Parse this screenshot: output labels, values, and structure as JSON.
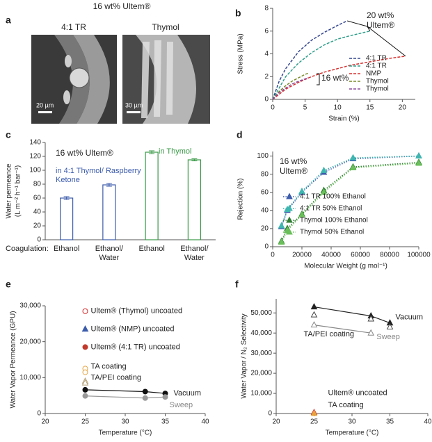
{
  "figure_title": "16 wt% Ultem®",
  "panel_a": {
    "label": "a",
    "images": [
      {
        "title": "4:1 TR",
        "scale_bar": "20 µm"
      },
      {
        "title": "Thymol",
        "scale_bar": "30 µm"
      }
    ]
  },
  "chart_data": [
    {
      "panel": "b",
      "type": "line",
      "line_style": "dashed",
      "xlabel": "Strain (%)",
      "ylabel": "Stress (MPa)",
      "xlim": [
        0,
        22
      ],
      "xticks": [
        0,
        5,
        10,
        15,
        20
      ],
      "ylim": [
        0,
        8
      ],
      "yticks": [
        0,
        2,
        4,
        6,
        8
      ],
      "legend": "lower right",
      "annotations": [
        "20 wt% Ultem®",
        "16 wt%"
      ],
      "series": [
        {
          "name": "4:1 TR",
          "color": "#34468f",
          "x": [
            0,
            1,
            2,
            4,
            6,
            8,
            10,
            11.5
          ],
          "values": [
            0,
            1.6,
            2.7,
            4.2,
            5.2,
            5.9,
            6.5,
            6.9
          ]
        },
        {
          "name": "4:1 TR",
          "color": "#2f9e8a",
          "x": [
            0,
            2,
            4,
            6,
            8,
            10,
            12,
            15
          ],
          "values": [
            0,
            2.0,
            3.2,
            4.1,
            4.8,
            5.3,
            5.6,
            6.0
          ]
        },
        {
          "name": "NMP",
          "color": "#d6312f",
          "x": [
            0,
            2,
            4,
            6,
            8,
            10,
            12,
            14,
            16,
            18,
            20.5
          ],
          "values": [
            0,
            0.9,
            1.5,
            2.0,
            2.4,
            2.7,
            3.0,
            3.2,
            3.4,
            3.6,
            3.8
          ]
        },
        {
          "name": "Thymol",
          "color": "#7a8b2b",
          "x": [
            0,
            1,
            2,
            3,
            4,
            5,
            5.5
          ],
          "values": [
            0,
            0.7,
            1.2,
            1.6,
            1.9,
            2.2,
            2.3
          ]
        },
        {
          "name": "Thymol",
          "color": "#8b4a9e",
          "x": [
            0,
            1,
            2,
            3,
            4,
            5.5
          ],
          "values": [
            0,
            0.6,
            1.0,
            1.35,
            1.6,
            1.9
          ]
        }
      ]
    },
    {
      "panel": "c",
      "type": "bar",
      "xlabel": "Coagulation:",
      "ylabel": [
        "Water permeance",
        "(L m⁻² h⁻¹ bar⁻¹)"
      ],
      "categories": [
        "Ethanol",
        "Ethanol/ Water",
        "Ethanol",
        "Ethanol/ Water"
      ],
      "values": [
        60,
        79,
        126,
        115
      ],
      "errors": [
        2,
        2,
        2,
        1.5
      ],
      "colors": [
        "#3b5bab",
        "#3b5bab",
        "#3a9a48",
        "#3a9a48"
      ],
      "ylim": [
        0,
        140
      ],
      "yticks": [
        0,
        20,
        40,
        60,
        80,
        100,
        120,
        140
      ],
      "annotations": [
        "16 wt% Ultem®",
        "in 4:1 Thymol/ Raspberry Ketone",
        "in Thymol"
      ]
    },
    {
      "panel": "d",
      "type": "line",
      "line_style": "dotted",
      "markers": true,
      "xlabel": "Molecular Weight (g mol⁻¹)",
      "ylabel": "Rejection (%)",
      "xlim": [
        0,
        100000
      ],
      "xticks": [
        0,
        20000,
        40000,
        60000,
        80000,
        100000
      ],
      "ylim": [
        0,
        105
      ],
      "yticks": [
        0,
        20,
        40,
        60,
        80,
        100
      ],
      "legend": "lower right",
      "annotations": [
        "16 wt% Ultem®"
      ],
      "x": [
        6000,
        10000,
        20000,
        35000,
        55000,
        100000
      ],
      "series": [
        {
          "name": "4:1 TR 100% Ethanol",
          "color": "#3b5bab",
          "values": [
            22,
            40,
            60,
            82,
            97,
            100
          ]
        },
        {
          "name": "4:1 TR 50% Ethanol",
          "color": "#3fb6b0",
          "values": [
            23,
            41,
            61,
            84,
            98,
            100
          ]
        },
        {
          "name": "Thymol 100% Ethanol",
          "color": "#2e7d32",
          "values": [
            6,
            20,
            36,
            62,
            88,
            93
          ]
        },
        {
          "name": "Thymol 50% Ethanol",
          "color": "#6abf5a",
          "values": [
            5,
            18,
            35,
            60,
            87,
            92
          ]
        }
      ]
    },
    {
      "panel": "e",
      "type": "scatter",
      "xlabel": "Temperature (°C)",
      "ylabel": "Water Vapor Permeance (GPU)",
      "xlim": [
        20,
        40
      ],
      "xticks": [
        20,
        25,
        30,
        35,
        40
      ],
      "ylim": [
        0,
        30000
      ],
      "yticks": [
        0,
        {
          "value": 10000,
          "label": "10,000"
        },
        {
          "value": 20000,
          "label": "20,000"
        },
        {
          "value": 30000,
          "label": "30,000"
        }
      ],
      "series": [
        {
          "name": "Ultem® (Thymol) uncoated",
          "color": "#d62728",
          "marker": "circle",
          "filled": false,
          "x": [
            25
          ],
          "values": [
            28500
          ]
        },
        {
          "name": "Ultem® (NMP) uncoated",
          "color": "#3b5bab",
          "marker": "triangle",
          "filled": true,
          "x": [
            25
          ],
          "values": [
            23500
          ]
        },
        {
          "name": "Ultem® (4:1 TR) uncoated",
          "color": "#c0392b",
          "marker": "circle",
          "filled": true,
          "x": [
            25
          ],
          "values": [
            18500
          ]
        },
        {
          "name": "TA coating",
          "color": "#e8a33d",
          "marker": "circle",
          "filled": false,
          "x": [
            25,
            25
          ],
          "values": [
            12500,
            11500
          ]
        },
        {
          "name": "TA/PEI coating",
          "color": "#b8a47a",
          "marker": "triangle",
          "filled": false,
          "x": [
            25,
            25
          ],
          "values": [
            9000,
            8500
          ]
        },
        {
          "name": "Vacuum",
          "color": "#111111",
          "marker": "circle",
          "filled": true,
          "line": true,
          "x": [
            25,
            32.5,
            35
          ],
          "values": [
            6600,
            6100,
            5600
          ]
        },
        {
          "name": "Sweep",
          "color": "#999999",
          "marker": "circle",
          "filled": true,
          "line": true,
          "x": [
            25,
            32.5,
            35
          ],
          "values": [
            4900,
            4300,
            4600
          ]
        }
      ]
    },
    {
      "panel": "f",
      "type": "scatter",
      "xlabel": "Temperature (°C)",
      "ylabel": "Water Vapor / N₂ Selectivity",
      "xlim": [
        20,
        40
      ],
      "xticks": [
        20,
        25,
        30,
        35,
        40
      ],
      "ylim": [
        0,
        57000
      ],
      "yticks": [
        0,
        {
          "value": 10000,
          "label": "10,000"
        },
        {
          "value": 20000,
          "label": "20,000"
        },
        {
          "value": 30000,
          "label": "30,000"
        },
        {
          "value": 40000,
          "label": "40,000"
        },
        {
          "value": 50000,
          "label": "50,000"
        }
      ],
      "series": [
        {
          "name": "Vacuum",
          "color": "#222222",
          "marker": "triangle",
          "filled": true,
          "line": true,
          "x": [
            25,
            32.5,
            35
          ],
          "values": [
            53000,
            48500,
            45000
          ]
        },
        {
          "name": "TA/PEI coating",
          "color": "#444444",
          "marker": "triangle",
          "filled": false,
          "x": [
            25,
            32.5,
            35
          ],
          "values": [
            49000,
            47000,
            43000
          ]
        },
        {
          "name": "Sweep",
          "color": "#888888",
          "marker": "triangle",
          "filled": false,
          "line": true,
          "x": [
            25,
            32.5
          ],
          "values": [
            44000,
            40000
          ]
        },
        {
          "name": "Ultem® uncoated",
          "color": "#d62728",
          "marker": "triangle",
          "filled": false,
          "x": [
            25
          ],
          "values": [
            500
          ]
        },
        {
          "name": "TA coating",
          "color": "#e8a33d",
          "marker": "triangle",
          "filled": true,
          "x": [
            25
          ],
          "values": [
            0
          ]
        }
      ]
    }
  ]
}
